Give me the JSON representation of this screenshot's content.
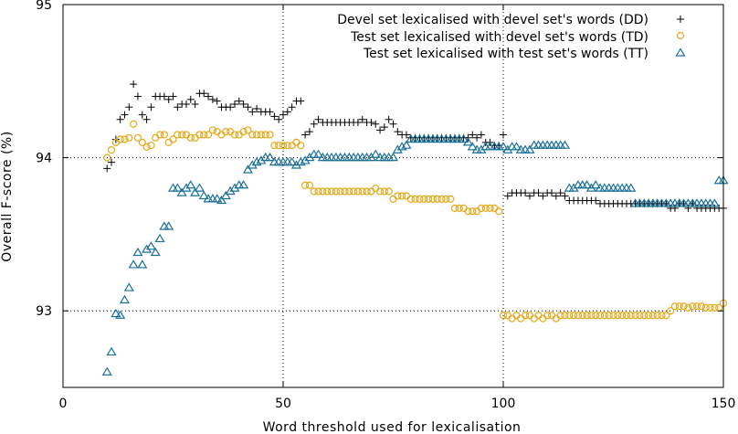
{
  "chart_data": {
    "type": "scatter",
    "title": "",
    "xlabel": "Word threshold used for lexicalisation",
    "ylabel": "Overall F-score (%)",
    "xlim": [
      0,
      150
    ],
    "ylim": [
      92.5,
      95
    ],
    "xticks": [
      0,
      50,
      100,
      150
    ],
    "yticks": [
      93,
      94,
      95
    ],
    "grid_x": [
      50,
      100
    ],
    "grid_y": [
      93,
      94
    ],
    "legend_position": "top-right",
    "series": [
      {
        "name": "Devel set lexicalised with devel set's words (DD)",
        "marker": "plus",
        "color": "#000000",
        "segments": [
          {
            "x0": 10,
            "x1": 30,
            "y": [
              93.93,
              93.97,
              94.12,
              94.25,
              94.28,
              94.33,
              94.48,
              94.4,
              94.28,
              94.25,
              94.33,
              94.4,
              94.4,
              94.4,
              94.38,
              94.4,
              94.33,
              94.35,
              94.35,
              94.38,
              94.35
            ]
          },
          {
            "x0": 31,
            "x1": 47,
            "y": [
              94.42,
              94.42,
              94.4,
              94.38,
              94.37,
              94.33,
              94.33,
              94.33,
              94.35,
              94.37,
              94.35,
              94.33,
              94.3,
              94.32,
              94.3,
              94.3,
              94.3
            ]
          },
          {
            "x0": 48,
            "x1": 56,
            "y": [
              94.27,
              94.25,
              94.28,
              94.3,
              94.33,
              94.37,
              94.37,
              94.15,
              94.17
            ]
          },
          {
            "x0": 57,
            "x1": 73,
            "y": [
              94.22,
              94.25,
              94.23,
              94.23,
              94.23,
              94.23,
              94.23,
              94.23,
              94.23,
              94.23,
              94.23,
              94.25,
              94.23,
              94.23,
              94.22,
              94.18,
              94.2
            ]
          },
          {
            "x0": 74,
            "x1": 99,
            "y": [
              94.25,
              94.22,
              94.17,
              94.15,
              94.15,
              94.13,
              94.13,
              94.13,
              94.13,
              94.13,
              94.13,
              94.13,
              94.13,
              94.13,
              94.13,
              94.13,
              94.13,
              94.13,
              94.13,
              94.15,
              94.13,
              94.15,
              94.1,
              94.1,
              94.08,
              94.08
            ]
          },
          {
            "x0": 100,
            "x1": 114,
            "y": [
              94.15,
              93.75,
              93.77,
              93.77,
              93.77,
              93.77,
              93.75,
              93.77,
              93.77,
              93.75,
              93.77,
              93.77,
              93.75,
              93.77,
              93.75
            ]
          },
          {
            "x0": 115,
            "x1": 132,
            "y": [
              93.72,
              93.72,
              93.72,
              93.72,
              93.72,
              93.72,
              93.72,
              93.7,
              93.7,
              93.7,
              93.7,
              93.7,
              93.7,
              93.7,
              93.7,
              93.7,
              93.7,
              93.7
            ]
          },
          {
            "x0": 133,
            "x1": 150,
            "y": [
              93.7,
              93.7,
              93.7,
              93.7,
              93.7,
              93.67,
              93.67,
              93.7,
              93.7,
              93.67,
              93.7,
              93.67,
              93.67,
              93.67,
              93.67,
              93.67,
              93.67,
              93.67
            ]
          }
        ]
      },
      {
        "name": "Test set lexicalised with devel set's words (TD)",
        "marker": "circle",
        "color": "#e6a817",
        "segments": [
          {
            "x0": 10,
            "x1": 30,
            "y": [
              94.0,
              94.05,
              94.1,
              94.12,
              94.12,
              94.13,
              94.22,
              94.13,
              94.1,
              94.07,
              94.08,
              94.13,
              94.15,
              94.15,
              94.1,
              94.12,
              94.15,
              94.15,
              94.15,
              94.13,
              94.13
            ]
          },
          {
            "x0": 31,
            "x1": 47,
            "y": [
              94.15,
              94.15,
              94.15,
              94.18,
              94.17,
              94.15,
              94.17,
              94.17,
              94.15,
              94.15,
              94.17,
              94.18,
              94.15,
              94.15,
              94.15,
              94.15,
              94.15
            ]
          },
          {
            "x0": 48,
            "x1": 56,
            "y": [
              94.08,
              94.08,
              94.08,
              94.08,
              94.08,
              94.1,
              94.08,
              93.82,
              93.82
            ]
          },
          {
            "x0": 57,
            "x1": 73,
            "y": [
              93.78,
              93.78,
              93.78,
              93.78,
              93.78,
              93.78,
              93.78,
              93.78,
              93.78,
              93.78,
              93.78,
              93.78,
              93.78,
              93.78,
              93.8,
              93.78,
              93.78
            ]
          },
          {
            "x0": 74,
            "x1": 99,
            "y": [
              93.78,
              93.73,
              93.75,
              93.75,
              93.75,
              93.73,
              93.73,
              93.73,
              93.73,
              93.73,
              93.73,
              93.73,
              93.73,
              93.73,
              93.73,
              93.67,
              93.67,
              93.67,
              93.65,
              93.65,
              93.65,
              93.67,
              93.67,
              93.67,
              93.67,
              93.65
            ]
          },
          {
            "x0": 100,
            "x1": 114,
            "y": [
              92.97,
              92.97,
              92.95,
              92.97,
              92.95,
              92.97,
              92.97,
              92.95,
              92.97,
              92.95,
              92.97,
              92.97,
              92.95,
              92.97,
              92.97
            ]
          },
          {
            "x0": 115,
            "x1": 132,
            "y": [
              92.97,
              92.97,
              92.97,
              92.97,
              92.97,
              92.97,
              92.97,
              92.97,
              92.97,
              92.97,
              92.97,
              92.97,
              92.97,
              92.97,
              92.97,
              92.97,
              92.97,
              92.97
            ]
          },
          {
            "x0": 133,
            "x1": 150,
            "y": [
              92.97,
              92.97,
              92.97,
              92.97,
              92.97,
              93.0,
              93.03,
              93.03,
              93.03,
              93.02,
              93.03,
              93.03,
              93.03,
              93.02,
              93.02,
              93.02,
              93.02,
              93.05
            ]
          }
        ]
      },
      {
        "name": "Test set lexicalised with test set's words (TT)",
        "marker": "triangle",
        "color": "#1a7099",
        "segments": [
          {
            "x0": 10,
            "x1": 30,
            "y": [
              92.6,
              92.73,
              92.98,
              92.97,
              93.07,
              93.15,
              93.3,
              93.38,
              93.3,
              93.4,
              93.42,
              93.38,
              93.47,
              93.55,
              93.55,
              93.8,
              93.8,
              93.77,
              93.8,
              93.82,
              93.77
            ]
          },
          {
            "x0": 31,
            "x1": 47,
            "y": [
              93.8,
              93.75,
              93.73,
              93.73,
              93.73,
              93.72,
              93.75,
              93.78,
              93.8,
              93.82,
              93.82,
              93.92,
              93.95,
              93.97,
              93.98,
              94.0,
              94.0
            ]
          },
          {
            "x0": 48,
            "x1": 56,
            "y": [
              93.97,
              93.97,
              93.97,
              93.97,
              93.97,
              93.95,
              93.97,
              93.98,
              94.0
            ]
          },
          {
            "x0": 57,
            "x1": 73,
            "y": [
              94.02,
              94.02,
              94.0,
              94.0,
              94.0,
              94.0,
              94.0,
              94.0,
              94.0,
              94.0,
              94.0,
              94.0,
              94.0,
              94.0,
              94.02,
              94.0,
              94.0
            ]
          },
          {
            "x0": 74,
            "x1": 99,
            "y": [
              94.0,
              94.0,
              94.05,
              94.07,
              94.08,
              94.12,
              94.12,
              94.12,
              94.12,
              94.12,
              94.12,
              94.12,
              94.12,
              94.12,
              94.12,
              94.12,
              94.12,
              94.12,
              94.1,
              94.07,
              94.05,
              94.05,
              94.07,
              94.07,
              94.07,
              94.07
            ]
          },
          {
            "x0": 100,
            "x1": 114,
            "y": [
              94.07,
              94.05,
              94.07,
              94.07,
              94.05,
              94.05,
              94.05,
              94.08,
              94.08,
              94.08,
              94.08,
              94.08,
              94.08,
              94.08,
              94.08
            ]
          },
          {
            "x0": 115,
            "x1": 132,
            "y": [
              93.8,
              93.8,
              93.82,
              93.82,
              93.82,
              93.8,
              93.82,
              93.8,
              93.8,
              93.8,
              93.8,
              93.8,
              93.8,
              93.8,
              93.8,
              93.7,
              93.7,
              93.7
            ]
          },
          {
            "x0": 133,
            "x1": 150,
            "y": [
              93.7,
              93.7,
              93.7,
              93.7,
              93.7,
              93.7,
              93.7,
              93.7,
              93.7,
              93.7,
              93.7,
              93.7,
              93.7,
              93.7,
              93.7,
              93.7,
              93.85,
              93.85
            ]
          }
        ]
      }
    ]
  }
}
